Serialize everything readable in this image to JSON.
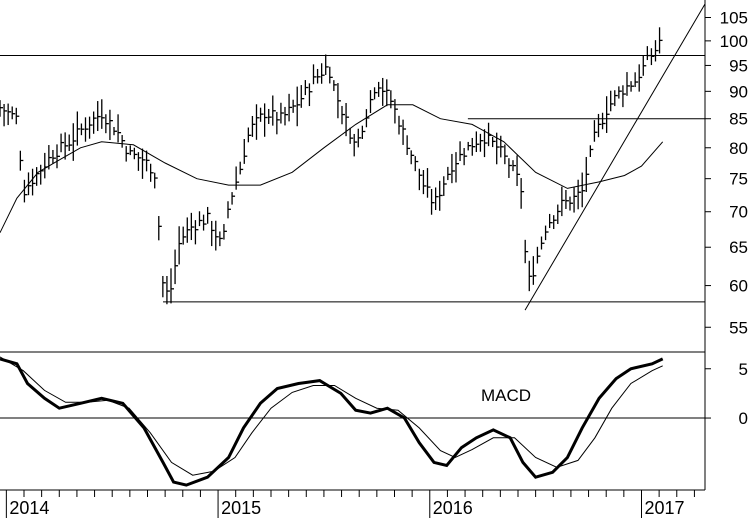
{
  "chart_data": [
    {
      "type": "ohlc",
      "title": "",
      "y_scale": "log",
      "ylim": [
        53,
        108
      ],
      "y_ticks": [
        55,
        60,
        65,
        70,
        75,
        80,
        85,
        90,
        95,
        100,
        105
      ],
      "x_range": [
        2013.97,
        2017.3
      ],
      "x_ticks": [
        {
          "x": 2014.0,
          "label": "2014"
        },
        {
          "x": 2015.0,
          "label": "2015"
        },
        {
          "x": 2016.0,
          "label": "2016"
        },
        {
          "x": 2017.0,
          "label": "2017"
        }
      ],
      "price_anchors": [
        [
          2013.97,
          87
        ],
        [
          2014.05,
          85
        ],
        [
          2014.08,
          73
        ],
        [
          2014.15,
          76
        ],
        [
          2014.22,
          79
        ],
        [
          2014.3,
          81
        ],
        [
          2014.38,
          84
        ],
        [
          2014.45,
          86
        ],
        [
          2014.52,
          83
        ],
        [
          2014.58,
          79
        ],
        [
          2014.65,
          78
        ],
        [
          2014.7,
          76
        ],
        [
          2014.74,
          60
        ],
        [
          2014.77,
          58.5
        ],
        [
          2014.82,
          66
        ],
        [
          2014.88,
          68
        ],
        [
          2014.95,
          69
        ],
        [
          2015.02,
          65
        ],
        [
          2015.05,
          71
        ],
        [
          2015.1,
          76
        ],
        [
          2015.15,
          83
        ],
        [
          2015.22,
          86
        ],
        [
          2015.3,
          85
        ],
        [
          2015.38,
          88
        ],
        [
          2015.45,
          92
        ],
        [
          2015.52,
          95
        ],
        [
          2015.56,
          89
        ],
        [
          2015.6,
          85
        ],
        [
          2015.65,
          80
        ],
        [
          2015.7,
          86
        ],
        [
          2015.75,
          92
        ],
        [
          2015.82,
          88
        ],
        [
          2015.9,
          80
        ],
        [
          2015.97,
          74
        ],
        [
          2016.02,
          71
        ],
        [
          2016.1,
          77
        ],
        [
          2016.18,
          80
        ],
        [
          2016.25,
          82
        ],
        [
          2016.32,
          80
        ],
        [
          2016.38,
          77
        ],
        [
          2016.43,
          74
        ],
        [
          2016.46,
          60
        ],
        [
          2016.49,
          62
        ],
        [
          2016.55,
          68
        ],
        [
          2016.62,
          71
        ],
        [
          2016.68,
          72
        ],
        [
          2016.72,
          73
        ],
        [
          2016.78,
          82
        ],
        [
          2016.84,
          87
        ],
        [
          2016.9,
          90
        ],
        [
          2016.97,
          92
        ],
        [
          2017.03,
          96
        ],
        [
          2017.08,
          99
        ],
        [
          2017.1,
          103
        ]
      ],
      "moving_average": [
        [
          2013.97,
          67
        ],
        [
          2014.05,
          72
        ],
        [
          2014.15,
          76
        ],
        [
          2014.25,
          78
        ],
        [
          2014.35,
          80
        ],
        [
          2014.45,
          81
        ],
        [
          2014.6,
          80.5
        ],
        [
          2014.75,
          77.5
        ],
        [
          2014.9,
          75
        ],
        [
          2015.05,
          74
        ],
        [
          2015.2,
          74
        ],
        [
          2015.35,
          76
        ],
        [
          2015.5,
          80
        ],
        [
          2015.65,
          84
        ],
        [
          2015.8,
          87.5
        ],
        [
          2015.92,
          87.5
        ],
        [
          2016.05,
          85
        ],
        [
          2016.2,
          84
        ],
        [
          2016.35,
          81
        ],
        [
          2016.5,
          76
        ],
        [
          2016.65,
          73.5
        ],
        [
          2016.8,
          74.5
        ],
        [
          2016.92,
          75.5
        ],
        [
          2017.0,
          77
        ],
        [
          2017.1,
          81
        ]
      ],
      "horizontal_lines": [
        97,
        85,
        58
      ],
      "trendline": [
        [
          2016.45,
          57
        ],
        [
          2017.3,
          108
        ]
      ]
    },
    {
      "type": "line",
      "title": "MACD",
      "ylim": [
        -7.3,
        6.7
      ],
      "y_ticks": [
        {
          "y": 5,
          "label": "5"
        },
        {
          "y": 0,
          "label": "0"
        }
      ],
      "zero_line": 0,
      "series": [
        {
          "role": "macd",
          "points": [
            [
              2013.97,
              6
            ],
            [
              2014.05,
              5.5
            ],
            [
              2014.1,
              3.5
            ],
            [
              2014.18,
              2
            ],
            [
              2014.25,
              1
            ],
            [
              2014.35,
              1.5
            ],
            [
              2014.45,
              2
            ],
            [
              2014.55,
              1.5
            ],
            [
              2014.65,
              -1
            ],
            [
              2014.74,
              -4.5
            ],
            [
              2014.79,
              -6.5
            ],
            [
              2014.85,
              -6.8
            ],
            [
              2014.95,
              -6
            ],
            [
              2015.05,
              -4
            ],
            [
              2015.12,
              -1
            ],
            [
              2015.2,
              1.5
            ],
            [
              2015.28,
              3
            ],
            [
              2015.38,
              3.5
            ],
            [
              2015.48,
              3.8
            ],
            [
              2015.58,
              2.5
            ],
            [
              2015.65,
              0.8
            ],
            [
              2015.72,
              0.5
            ],
            [
              2015.8,
              1
            ],
            [
              2015.88,
              0
            ],
            [
              2015.95,
              -2.5
            ],
            [
              2016.02,
              -4.5
            ],
            [
              2016.08,
              -4.8
            ],
            [
              2016.15,
              -3
            ],
            [
              2016.22,
              -2
            ],
            [
              2016.3,
              -1.2
            ],
            [
              2016.38,
              -2
            ],
            [
              2016.44,
              -4.5
            ],
            [
              2016.5,
              -6
            ],
            [
              2016.58,
              -5.5
            ],
            [
              2016.65,
              -4
            ],
            [
              2016.72,
              -1
            ],
            [
              2016.8,
              2
            ],
            [
              2016.88,
              4
            ],
            [
              2016.95,
              5
            ],
            [
              2017.05,
              5.5
            ],
            [
              2017.1,
              6
            ]
          ]
        },
        {
          "role": "signal",
          "points": [
            [
              2013.97,
              6.2
            ],
            [
              2014.08,
              4.8
            ],
            [
              2014.18,
              2.8
            ],
            [
              2014.28,
              1.6
            ],
            [
              2014.38,
              1.6
            ],
            [
              2014.48,
              1.8
            ],
            [
              2014.58,
              1
            ],
            [
              2014.68,
              -1.5
            ],
            [
              2014.78,
              -4.5
            ],
            [
              2014.88,
              -5.8
            ],
            [
              2014.98,
              -5.4
            ],
            [
              2015.08,
              -4
            ],
            [
              2015.16,
              -1.5
            ],
            [
              2015.25,
              1
            ],
            [
              2015.35,
              2.6
            ],
            [
              2015.45,
              3.3
            ],
            [
              2015.55,
              3.3
            ],
            [
              2015.65,
              2
            ],
            [
              2015.75,
              1
            ],
            [
              2015.85,
              0.8
            ],
            [
              2015.95,
              -1
            ],
            [
              2016.05,
              -3.3
            ],
            [
              2016.12,
              -4
            ],
            [
              2016.2,
              -3.2
            ],
            [
              2016.3,
              -2
            ],
            [
              2016.4,
              -2
            ],
            [
              2016.5,
              -4
            ],
            [
              2016.6,
              -5
            ],
            [
              2016.7,
              -4.3
            ],
            [
              2016.78,
              -2
            ],
            [
              2016.86,
              1
            ],
            [
              2016.95,
              3.5
            ],
            [
              2017.05,
              4.8
            ],
            [
              2017.1,
              5.3
            ]
          ]
        }
      ]
    }
  ]
}
